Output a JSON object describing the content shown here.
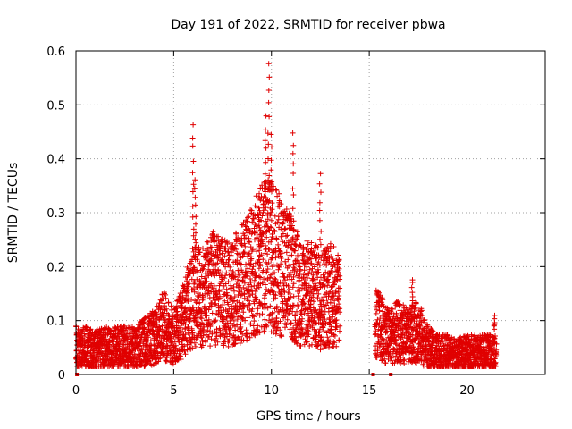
{
  "chart_data": {
    "type": "scatter",
    "title": "Day 191 of 2022, SRMTID for receiver pbwa",
    "xlabel": "GPS time / hours",
    "ylabel": "SRMTID / TECUs",
    "xlim": [
      0,
      24
    ],
    "ylim": [
      0,
      0.6
    ],
    "xticks": [
      0,
      5,
      10,
      15,
      20
    ],
    "yticks": [
      0,
      0.1,
      0.2,
      0.3,
      0.4,
      0.5,
      0.6
    ],
    "grid": true,
    "marker": "+",
    "color": "#e00000",
    "x_gaps": [
      [
        13.7,
        15.3
      ]
    ],
    "zero_markers_x": [
      0.05,
      15.2,
      16.1
    ],
    "series": [
      {
        "name": "SRMTID",
        "segments": [
          {
            "x": [
              0.0,
              0.5,
              1.0,
              1.5,
              2.0,
              2.5,
              3.0,
              3.5,
              4.0,
              4.5,
              5.0,
              5.5,
              6.0,
              6.5,
              7.0,
              7.5,
              8.0,
              8.5,
              9.0,
              9.5,
              10.0,
              10.5,
              11.0,
              11.5,
              12.0,
              12.5,
              13.0,
              13.5
            ],
            "y": [
              0.05,
              0.05,
              0.045,
              0.05,
              0.05,
              0.05,
              0.05,
              0.06,
              0.07,
              0.09,
              0.07,
              0.1,
              0.15,
              0.14,
              0.16,
              0.15,
              0.15,
              0.17,
              0.19,
              0.22,
              0.22,
              0.2,
              0.18,
              0.15,
              0.15,
              0.14,
              0.15,
              0.13
            ]
          },
          {
            "x": [
              15.3,
              15.5,
              16.0,
              16.5,
              17.0,
              17.5,
              18.0,
              18.5,
              19.0,
              19.5,
              20.0,
              20.5,
              21.0,
              21.5
            ],
            "y": [
              0.1,
              0.09,
              0.07,
              0.08,
              0.07,
              0.08,
              0.05,
              0.04,
              0.04,
              0.035,
              0.04,
              0.04,
              0.04,
              0.04
            ]
          }
        ],
        "peaks": [
          {
            "x": 6.0,
            "y": 0.46
          },
          {
            "x": 6.1,
            "y": 0.36
          },
          {
            "x": 9.4,
            "y": 0.35
          },
          {
            "x": 9.7,
            "y": 0.48
          },
          {
            "x": 9.85,
            "y": 0.58
          },
          {
            "x": 10.0,
            "y": 0.44
          },
          {
            "x": 11.1,
            "y": 0.45
          },
          {
            "x": 12.5,
            "y": 0.37
          },
          {
            "x": 17.2,
            "y": 0.18
          },
          {
            "x": 21.4,
            "y": 0.11
          }
        ]
      }
    ]
  }
}
